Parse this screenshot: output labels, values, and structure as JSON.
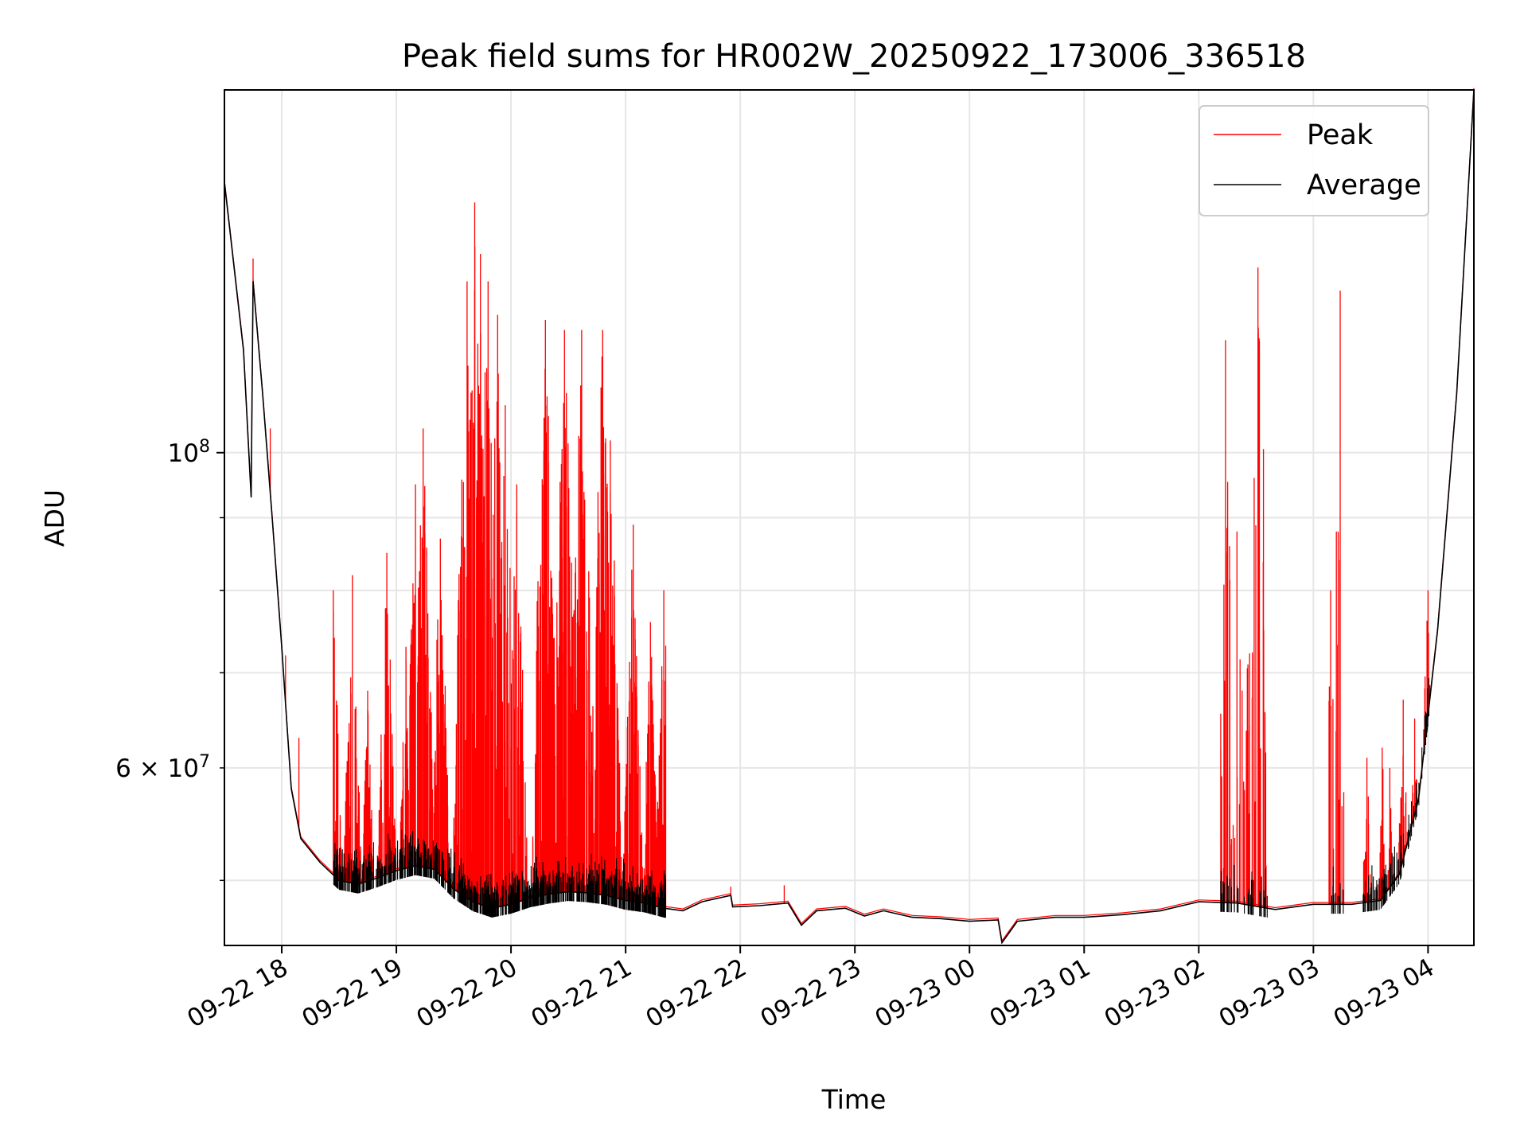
{
  "chart_data": {
    "type": "line",
    "title": "Peak field sums for HR002W_20250922_173006_336518",
    "xlabel": "Time",
    "ylabel": "ADU",
    "y_scale": "log",
    "ylim": [
      45000000,
      180000000
    ],
    "xlim": [
      "2025-09-22 17:30",
      "2025-09-23 04:24"
    ],
    "x_ticks": [
      "09-22 18",
      "09-22 19",
      "09-22 20",
      "09-22 21",
      "09-22 22",
      "09-22 23",
      "09-23 00",
      "09-23 01",
      "09-23 02",
      "09-23 03",
      "09-23 04"
    ],
    "y_ticks_major": [
      {
        "value": 100000000,
        "label": "10^8"
      }
    ],
    "y_ticks_minor": [
      {
        "value": 50000000,
        "label": ""
      },
      {
        "value": 60000000,
        "label": "6 × 10^7"
      },
      {
        "value": 70000000,
        "label": ""
      },
      {
        "value": 80000000,
        "label": ""
      },
      {
        "value": 90000000,
        "label": ""
      }
    ],
    "grid": true,
    "legend_position": "top-right",
    "colors": {
      "Peak": "#ff0000",
      "Average": "#000000"
    },
    "series": [
      {
        "name": "Average",
        "points": [
          [
            "2025-09-22 17:30",
            155000000
          ],
          [
            "2025-09-22 17:40",
            118000000
          ],
          [
            "2025-09-22 17:44",
            93000000
          ],
          [
            "2025-09-22 17:45",
            132000000
          ],
          [
            "2025-09-22 17:50",
            110000000
          ],
          [
            "2025-09-22 17:55",
            90000000
          ],
          [
            "2025-09-22 18:00",
            73000000
          ],
          [
            "2025-09-22 18:05",
            58000000
          ],
          [
            "2025-09-22 18:10",
            53500000
          ],
          [
            "2025-09-22 18:20",
            51500000
          ],
          [
            "2025-09-22 18:30",
            50000000
          ],
          [
            "2025-09-22 18:40",
            49700000
          ],
          [
            "2025-09-22 18:50",
            50200000
          ],
          [
            "2025-09-22 19:00",
            50800000
          ],
          [
            "2025-09-22 19:10",
            51200000
          ],
          [
            "2025-09-22 19:20",
            50900000
          ],
          [
            "2025-09-22 19:30",
            49300000
          ],
          [
            "2025-09-22 19:40",
            48300000
          ],
          [
            "2025-09-22 19:50",
            47800000
          ],
          [
            "2025-09-22 20:00",
            48100000
          ],
          [
            "2025-09-22 20:10",
            48600000
          ],
          [
            "2025-09-22 20:20",
            48900000
          ],
          [
            "2025-09-22 20:30",
            49100000
          ],
          [
            "2025-09-22 20:40",
            49000000
          ],
          [
            "2025-09-22 20:50",
            48800000
          ],
          [
            "2025-09-22 21:00",
            48400000
          ],
          [
            "2025-09-22 21:10",
            48200000
          ],
          [
            "2025-09-22 21:20",
            47800000
          ],
          [
            "2025-09-22 21:30",
            47600000
          ],
          [
            "2025-09-22 21:40",
            48300000
          ],
          [
            "2025-09-22 21:55",
            48800000
          ],
          [
            "2025-09-22 21:56",
            47900000
          ],
          [
            "2025-09-22 22:10",
            48000000
          ],
          [
            "2025-09-22 22:25",
            48200000
          ],
          [
            "2025-09-22 22:32",
            46500000
          ],
          [
            "2025-09-22 22:40",
            47600000
          ],
          [
            "2025-09-22 22:55",
            47800000
          ],
          [
            "2025-09-22 23:05",
            47200000
          ],
          [
            "2025-09-22 23:15",
            47600000
          ],
          [
            "2025-09-22 23:30",
            47100000
          ],
          [
            "2025-09-22 23:45",
            47000000
          ],
          [
            "2025-09-23 00:00",
            46800000
          ],
          [
            "2025-09-23 00:15",
            46900000
          ],
          [
            "2025-09-23 00:17",
            45200000
          ],
          [
            "2025-09-23 00:25",
            46800000
          ],
          [
            "2025-09-23 00:45",
            47100000
          ],
          [
            "2025-09-23 01:00",
            47100000
          ],
          [
            "2025-09-23 01:20",
            47300000
          ],
          [
            "2025-09-23 01:40",
            47600000
          ],
          [
            "2025-09-23 02:00",
            48300000
          ],
          [
            "2025-09-23 02:20",
            48200000
          ],
          [
            "2025-09-23 02:40",
            47700000
          ],
          [
            "2025-09-23 03:00",
            48100000
          ],
          [
            "2025-09-23 03:20",
            48100000
          ],
          [
            "2025-09-23 03:35",
            48400000
          ],
          [
            "2025-09-23 03:45",
            50500000
          ],
          [
            "2025-09-23 03:55",
            57000000
          ],
          [
            "2025-09-23 04:05",
            75000000
          ],
          [
            "2025-09-23 04:15",
            110000000
          ],
          [
            "2025-09-23 04:24",
            180000000
          ]
        ]
      },
      {
        "name": "Peak",
        "points": [
          [
            "2025-09-22 17:30",
            160000000
          ],
          [
            "2025-09-22 17:45",
            137000000
          ],
          [
            "2025-09-22 17:54",
            104000000
          ],
          [
            "2025-09-22 18:02",
            72000000
          ],
          [
            "2025-09-22 18:09",
            63000000
          ],
          [
            "2025-09-22 18:27",
            80000000
          ],
          [
            "2025-09-22 18:37",
            82000000
          ],
          [
            "2025-09-22 18:45",
            68000000
          ],
          [
            "2025-09-22 18:55",
            85000000
          ],
          [
            "2025-09-22 19:05",
            73000000
          ],
          [
            "2025-09-22 19:10",
            95000000
          ],
          [
            "2025-09-22 19:14",
            104000000
          ],
          [
            "2025-09-22 19:23",
            87000000
          ],
          [
            "2025-09-22 19:37",
            132000000
          ],
          [
            "2025-09-22 19:41",
            150000000
          ],
          [
            "2025-09-22 19:44",
            138000000
          ],
          [
            "2025-09-22 19:48",
            132000000
          ],
          [
            "2025-09-22 19:53",
            125000000
          ],
          [
            "2025-09-22 19:57",
            108000000
          ],
          [
            "2025-09-22 20:03",
            95000000
          ],
          [
            "2025-09-22 20:18",
            124000000
          ],
          [
            "2025-09-22 20:28",
            122000000
          ],
          [
            "2025-09-22 20:37",
            122000000
          ],
          [
            "2025-09-22 20:48",
            122000000
          ],
          [
            "2025-09-22 20:52",
            102000000
          ],
          [
            "2025-09-22 21:04",
            89000000
          ],
          [
            "2025-09-22 21:13",
            76000000
          ],
          [
            "2025-09-22 21:20",
            80000000
          ],
          [
            "2025-09-22 21:55",
            49500000
          ],
          [
            "2025-09-22 22:23",
            49600000
          ],
          [
            "2025-09-23 02:13",
            51000000
          ],
          [
            "2025-09-23 02:14",
            120000000
          ],
          [
            "2025-09-23 02:20",
            88000000
          ],
          [
            "2025-09-23 02:29",
            96000000
          ],
          [
            "2025-09-23 02:31",
            135000000
          ],
          [
            "2025-09-23 02:34",
            75000000
          ],
          [
            "2025-09-23 03:09",
            80000000
          ],
          [
            "2025-09-23 03:12",
            88000000
          ],
          [
            "2025-09-23 03:14",
            130000000
          ],
          [
            "2025-09-23 03:28",
            61000000
          ],
          [
            "2025-09-23 03:36",
            62000000
          ],
          [
            "2025-09-23 03:40",
            60000000
          ],
          [
            "2025-09-23 03:47",
            67000000
          ],
          [
            "2025-09-23 03:53",
            65000000
          ],
          [
            "2025-09-23 04:00",
            80000000
          ]
        ]
      }
    ]
  }
}
